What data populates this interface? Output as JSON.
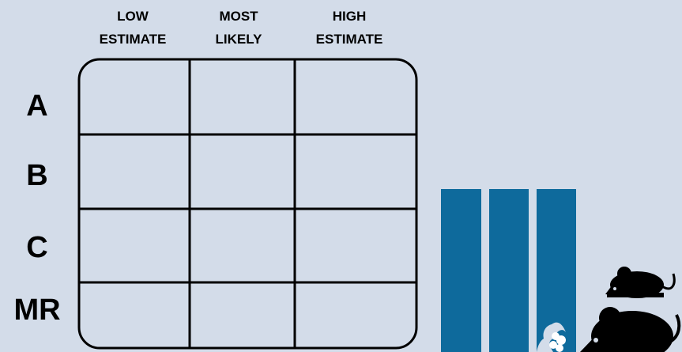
{
  "table": {
    "columns": [
      [
        "LOW",
        "ESTIMATE"
      ],
      [
        "MOST",
        "LIKELY"
      ],
      [
        "HIGH",
        "ESTIMATE"
      ]
    ],
    "rows": [
      "A",
      "B",
      "C",
      "MR"
    ]
  }
}
